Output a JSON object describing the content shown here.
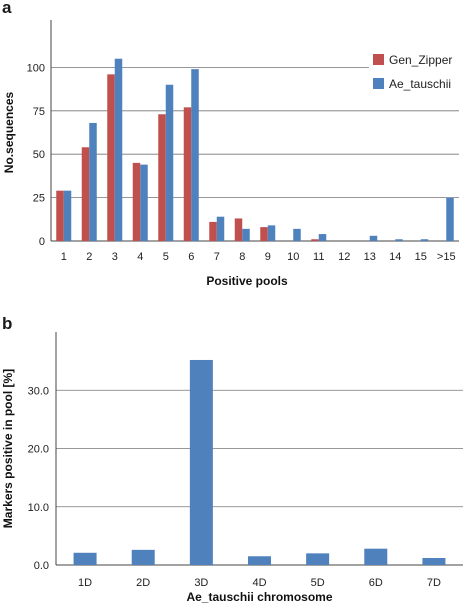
{
  "panels": {
    "a_label": "a",
    "b_label": "b"
  },
  "chart_data": [
    {
      "type": "bar",
      "categories": [
        "1",
        "2",
        "3",
        "4",
        "5",
        "6",
        "7",
        "8",
        "9",
        "10",
        "11",
        "12",
        "13",
        "14",
        "15",
        ">15"
      ],
      "series": [
        {
          "name": "Gen_Zipper",
          "color": "#c0504d",
          "values": [
            29,
            54,
            96,
            45,
            73,
            77,
            11,
            13,
            8,
            0,
            1,
            0,
            0,
            0,
            0,
            0
          ]
        },
        {
          "name": "Ae_tauschii",
          "color": "#4f81bd",
          "values": [
            29,
            68,
            105,
            44,
            90,
            99,
            14,
            7,
            9,
            7,
            4,
            0,
            3,
            1,
            1,
            25
          ]
        }
      ],
      "xlabel": "Positive pools",
      "ylabel": "No.sequences",
      "ylim": [
        0,
        125
      ],
      "yticks": [
        "0",
        "25",
        "50",
        "75",
        "100"
      ],
      "grid": true,
      "legend": "right"
    },
    {
      "type": "bar",
      "categories": [
        "1D",
        "2D",
        "3D",
        "4D",
        "5D",
        "6D",
        "7D"
      ],
      "series": [
        {
          "color": "#4f81bd",
          "values": [
            2.1,
            2.6,
            35.2,
            1.5,
            2.0,
            2.8,
            1.2
          ]
        }
      ],
      "xlabel": "Ae_tauschii chromosome",
      "ylabel": "Markers positive in pool [%]",
      "ylim": [
        0,
        40
      ],
      "yticks": [
        "0.0",
        "10.0",
        "20.0",
        "30.0"
      ],
      "grid": true
    }
  ]
}
